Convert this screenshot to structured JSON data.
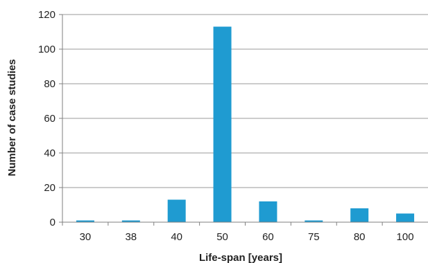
{
  "chart_data": {
    "type": "bar",
    "title": "",
    "xlabel": "Life-span [years]",
    "ylabel": "Number of case studies",
    "categories": [
      "30",
      "38",
      "40",
      "50",
      "60",
      "75",
      "80",
      "100"
    ],
    "values": [
      1,
      1,
      13,
      113,
      12,
      1,
      8,
      5
    ],
    "ylim": [
      0,
      120
    ],
    "yticks": [
      "0",
      "20",
      "40",
      "60",
      "80",
      "100",
      "120"
    ],
    "grid": true,
    "legend": "none",
    "colors": {
      "bar": "#1f9bd1",
      "grid": "#9a9a9a",
      "axis": "#7f7f7f"
    }
  }
}
